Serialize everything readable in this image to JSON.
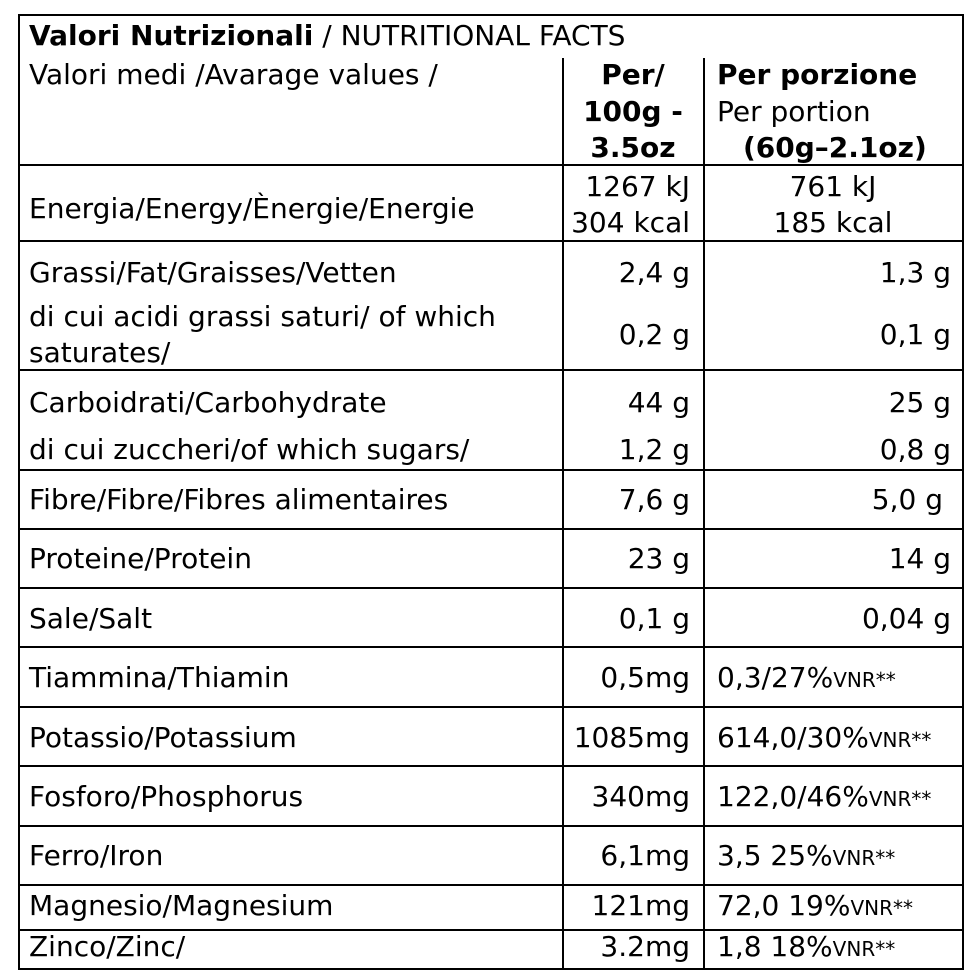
{
  "header": {
    "title_bold": "Valori Nutrizionali",
    "title_rest": " / NUTRITIONAL FACTS",
    "subtitle": "Valori medi /Avarage values /",
    "col100_lines": [
      "Per/",
      "100g -",
      "3.5oz"
    ],
    "colportion_title": "Per porzione",
    "colportion_sub": "Per portion",
    "colportion_size": "(60g–2.1oz)"
  },
  "rows": {
    "energy": {
      "label": "Energia/Energy/Ènergie/Energie",
      "per100_kj": "1267 kJ",
      "per100_kcal": "304 kcal",
      "portion_kj": "761 kJ",
      "portion_kcal": "185 kcal"
    },
    "fat": {
      "label": "Grassi/Fat/Graisses/Vetten",
      "per100": "2,4 g",
      "portion": "1,3 g"
    },
    "saturates": {
      "label_line1": "di cui acidi grassi saturi/ of which",
      "label_line2": "saturates/",
      "per100": "0,2 g",
      "portion": "0,1 g"
    },
    "carbs": {
      "label": "Carboidrati/Carbohydrate",
      "per100": "44 g",
      "portion": "25 g"
    },
    "sugars": {
      "label": "di cui zuccheri/of which sugars/",
      "per100": "1,2 g",
      "portion": "0,8 g"
    },
    "fibre": {
      "label": "Fibre/Fibre/Fibres alimentaires",
      "per100": "7,6 g",
      "portion": "5,0 g"
    },
    "protein": {
      "label": "Proteine/Protein",
      "per100": "23 g",
      "portion": "14 g"
    },
    "salt": {
      "label": "Sale/Salt",
      "per100": "0,1 g",
      "portion": "0,04 g"
    },
    "thiamin": {
      "label": "Tiammina/Thiamin",
      "per100": "0,5mg",
      "portion": "0,3/27%",
      "vnr": "VNR**"
    },
    "potassium": {
      "label": "Potassio/Potassium",
      "per100": "1085mg",
      "portion": "614,0/30%",
      "vnr": "VNR**"
    },
    "phosphorus": {
      "label": "Fosforo/Phosphorus",
      "per100": "340mg",
      "portion": "122,0/46%",
      "vnr": "VNR**"
    },
    "iron": {
      "label": "Ferro/Iron",
      "per100": "6,1mg",
      "portion": "3,5 25%",
      "vnr": "VNR**"
    },
    "magnesium": {
      "label": "Magnesio/Magnesium",
      "per100": "121mg",
      "portion": "72,0 19%",
      "vnr": "VNR**"
    },
    "zinc": {
      "label": "Zinco/Zinc/",
      "per100": "3.2mg",
      "portion": "1,8 18%",
      "vnr": "VNR**"
    }
  }
}
